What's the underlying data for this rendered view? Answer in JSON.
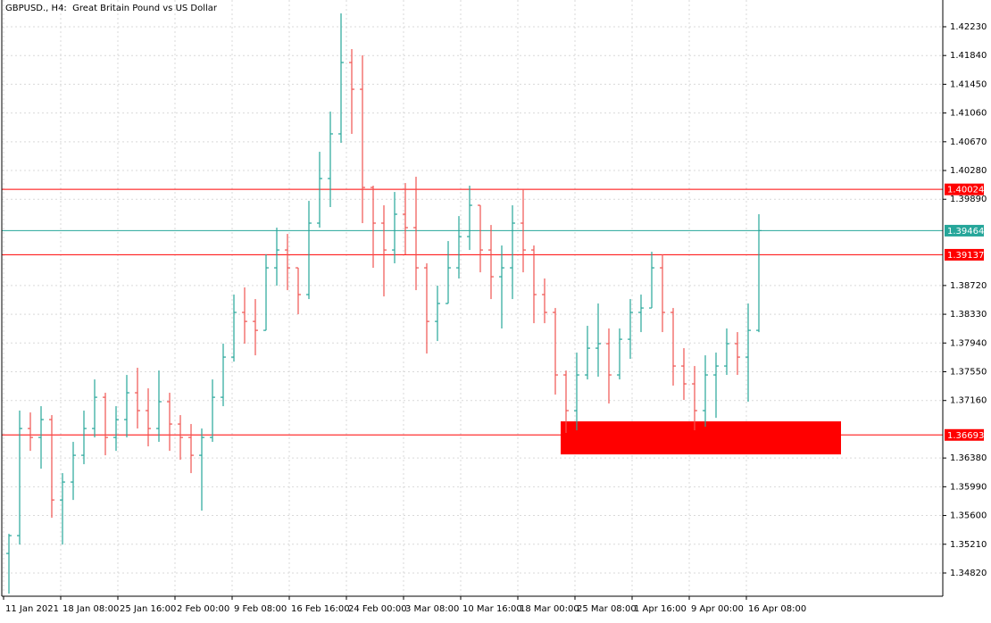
{
  "chart_data": {
    "type": "ohlc",
    "title": "GBPUSD., H4:  Great Britain Pound vs US Dollar",
    "up_color": "#26a69a",
    "down_color": "#ef5350",
    "grid": true,
    "xlim": [
      -1,
      526
    ],
    "ylim": [
      1.34505,
      1.42593
    ],
    "xticks": [
      {
        "value": 0,
        "label": "11 Jan 2021"
      },
      {
        "value": 32,
        "label": "18 Jan 08:00"
      },
      {
        "value": 64,
        "label": "25 Jan 16:00"
      },
      {
        "value": 96,
        "label": "2 Feb 00:00"
      },
      {
        "value": 128,
        "label": "9 Feb 08:00"
      },
      {
        "value": 160,
        "label": "16 Feb 16:00"
      },
      {
        "value": 192,
        "label": "24 Feb 00:00"
      },
      {
        "value": 224,
        "label": "3 Mar 08:00"
      },
      {
        "value": 256,
        "label": "10 Mar 16:00"
      },
      {
        "value": 288,
        "label": "18 Mar 00:00"
      },
      {
        "value": 320,
        "label": "25 Mar 08:00"
      },
      {
        "value": 352,
        "label": "1 Apr 16:00"
      },
      {
        "value": 384,
        "label": "9 Apr 00:00"
      },
      {
        "value": 416,
        "label": "16 Apr 08:00"
      }
    ],
    "yticks": [
      {
        "value": 1.4223,
        "label": "1.42230"
      },
      {
        "value": 1.4184,
        "label": "1.41840"
      },
      {
        "value": 1.4145,
        "label": "1.41450"
      },
      {
        "value": 1.4106,
        "label": "1.41060"
      },
      {
        "value": 1.4067,
        "label": "1.40670"
      },
      {
        "value": 1.4028,
        "label": "1.40280"
      },
      {
        "value": 1.3989,
        "label": "1.39890"
      },
      {
        "value": 1.3872,
        "label": "1.38720"
      },
      {
        "value": 1.3833,
        "label": "1.38330"
      },
      {
        "value": 1.3794,
        "label": "1.37940"
      },
      {
        "value": 1.3755,
        "label": "1.37550"
      },
      {
        "value": 1.3716,
        "label": "1.37160"
      },
      {
        "value": 1.3638,
        "label": "1.36380"
      },
      {
        "value": 1.3599,
        "label": "1.35990"
      },
      {
        "value": 1.356,
        "label": "1.35600"
      },
      {
        "value": 1.3521,
        "label": "1.35210"
      },
      {
        "value": 1.3482,
        "label": "1.34820"
      }
    ],
    "levels": [
      {
        "value": 1.40024,
        "color": "#ff0000"
      },
      {
        "value": 1.39464,
        "color": "#26a69a"
      },
      {
        "value": 1.39137,
        "color": "#ff0000"
      },
      {
        "value": 1.36693,
        "color": "#ff0000"
      }
    ],
    "zone": {
      "x": [
        312,
        469
      ],
      "y": [
        1.36429,
        1.36877
      ],
      "color": "#ff0000"
    },
    "x": [
      3,
      9,
      15,
      21,
      27,
      33,
      39,
      45,
      51,
      57,
      63,
      69,
      75,
      81,
      87,
      93,
      99,
      105,
      111,
      117,
      123,
      129,
      135,
      141,
      147,
      153,
      159,
      165,
      171,
      177,
      183,
      189,
      195,
      201,
      207,
      213,
      219,
      225,
      231,
      237,
      243,
      249,
      255,
      261,
      267,
      273,
      279,
      285,
      291,
      297,
      303,
      309,
      315,
      321,
      327,
      333,
      339,
      345,
      351,
      357,
      363,
      369,
      375,
      381,
      387,
      393,
      399,
      405,
      411,
      417,
      423
    ],
    "open": [
      1.35085,
      1.35327,
      1.3678,
      1.36659,
      1.36901,
      1.35811,
      1.36054,
      1.36417,
      1.3678,
      1.37204,
      1.36659,
      1.36901,
      1.37265,
      1.37023,
      1.3678,
      1.37144,
      1.36841,
      1.36659,
      1.36417,
      1.36659,
      1.37204,
      1.37749,
      1.38355,
      1.38233,
      1.38112,
      1.3896,
      1.39202,
      1.3896,
      1.38597,
      1.39566,
      1.40171,
      1.40777,
      1.41745,
      1.41382,
      1.4005,
      1.39566,
      1.39202,
      1.39687,
      1.39505,
      1.3896,
      1.38233,
      1.38476,
      1.3896,
      1.39384,
      1.39808,
      1.39202,
      1.38839,
      1.3896,
      1.39566,
      1.39202,
      1.38597,
      1.38355,
      1.37507,
      1.37023,
      1.37507,
      1.3787,
      1.37931,
      1.37507,
      1.37991,
      1.38355,
      1.38415,
      1.3896,
      1.38355,
      1.37628,
      1.37386,
      1.37023,
      1.37507,
      1.37628,
      1.37931,
      1.37749,
      1.38112
    ],
    "high": [
      1.35351,
      1.37023,
      1.36998,
      1.37083,
      1.36962,
      1.36175,
      1.36599,
      1.37023,
      1.37446,
      1.37265,
      1.37083,
      1.37507,
      1.37604,
      1.37325,
      1.37567,
      1.37265,
      1.36962,
      1.36841,
      1.3678,
      1.37446,
      1.37931,
      1.38597,
      1.38694,
      1.38536,
      1.39142,
      1.39505,
      1.3942,
      1.3896,
      1.39868,
      1.40534,
      1.41079,
      1.42411,
      1.41927,
      1.41842,
      1.40074,
      1.39808,
      1.39989,
      1.4011,
      1.40195,
      1.39021,
      1.38718,
      1.39323,
      1.39662,
      1.40074,
      1.39808,
      1.39541,
      1.39263,
      1.39808,
      1.40026,
      1.39263,
      1.38815,
      1.38415,
      1.37567,
      1.3781,
      1.38173,
      1.38476,
      1.38137,
      1.38137,
      1.38536,
      1.38597,
      1.39178,
      1.39142,
      1.38415,
      1.3787,
      1.37628,
      1.37773,
      1.3781,
      1.38137,
      1.38088,
      1.38476,
      1.39687
    ],
    "low": [
      1.3454,
      1.35206,
      1.36477,
      1.36235,
      1.35569,
      1.35206,
      1.35811,
      1.36296,
      1.36659,
      1.36417,
      1.36477,
      1.36659,
      1.3678,
      1.36538,
      1.36599,
      1.36477,
      1.36356,
      1.36175,
      1.35666,
      1.36599,
      1.37083,
      1.37688,
      1.37931,
      1.37773,
      1.38112,
      1.38718,
      1.38657,
      1.3833,
      1.38536,
      1.39505,
      1.39784,
      1.40655,
      1.40777,
      1.39566,
      1.3896,
      1.38572,
      1.39021,
      1.39142,
      1.38657,
      1.37797,
      1.37967,
      1.38476,
      1.38815,
      1.39202,
      1.38899,
      1.38536,
      1.38137,
      1.38536,
      1.38899,
      1.38209,
      1.38209,
      1.3724,
      1.3672,
      1.36756,
      1.37446,
      1.37483,
      1.37119,
      1.37446,
      1.37725,
      1.38088,
      1.38415,
      1.38088,
      1.37362,
      1.37168,
      1.36756,
      1.36804,
      1.36925,
      1.37507,
      1.37507,
      1.37144,
      1.38088
    ],
    "close": [
      1.35327,
      1.3678,
      1.36659,
      1.36901,
      1.35811,
      1.36054,
      1.36417,
      1.3678,
      1.37204,
      1.36659,
      1.36901,
      1.37265,
      1.37023,
      1.3678,
      1.37144,
      1.36841,
      1.36659,
      1.36417,
      1.36659,
      1.37204,
      1.37749,
      1.38355,
      1.38233,
      1.38112,
      1.3896,
      1.39202,
      1.3896,
      1.38597,
      1.39566,
      1.40171,
      1.40777,
      1.41745,
      1.41382,
      1.4005,
      1.39566,
      1.39202,
      1.39687,
      1.39505,
      1.3896,
      1.38233,
      1.38476,
      1.3896,
      1.39384,
      1.39808,
      1.39202,
      1.38839,
      1.3896,
      1.39566,
      1.39202,
      1.38597,
      1.38355,
      1.37507,
      1.37023,
      1.37507,
      1.3787,
      1.37931,
      1.37507,
      1.37991,
      1.38355,
      1.38415,
      1.3896,
      1.38355,
      1.37628,
      1.37386,
      1.37023,
      1.37507,
      1.37628,
      1.37931,
      1.37749,
      1.38112,
      1.39464
    ]
  }
}
